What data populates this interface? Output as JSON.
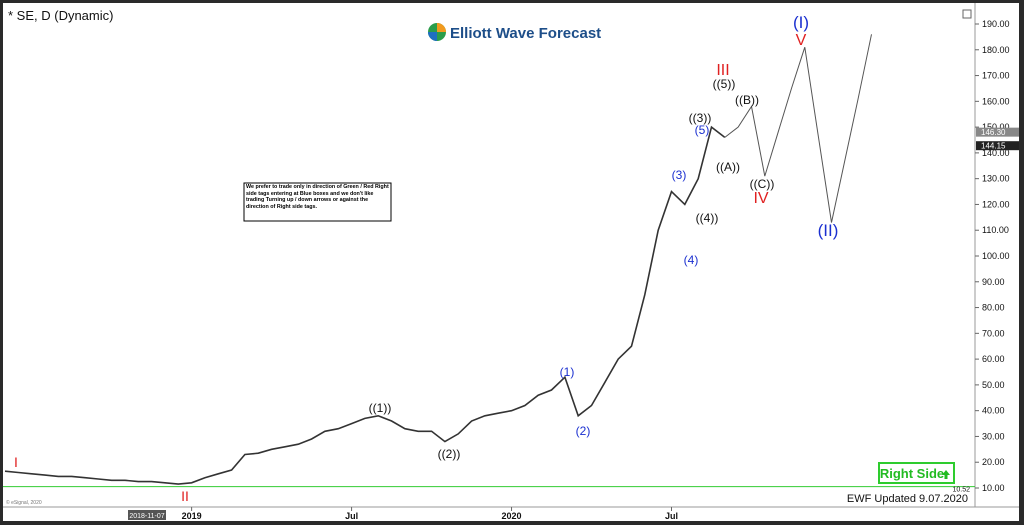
{
  "chart_data": {
    "type": "line",
    "title": "* SE, D (Dynamic)",
    "brand": "Elliott Wave Forecast",
    "note": "We prefer to trade only in direction of Green / Red Right side tags entering at Blue boxes and we don't like trading Turning up / down arrows or against the direction of Right side tags.",
    "right_side": "Right Side",
    "updated": "EWF Updated 9.07.2020",
    "copyright": "© eSignal, 2020",
    "cursor_date": "2018-11-07",
    "categories": [
      null,
      null,
      null,
      null,
      null,
      null,
      null,
      null,
      null,
      null,
      null,
      null,
      null,
      null,
      "2019",
      null,
      null,
      null,
      null,
      null,
      null,
      null,
      null,
      null,
      null,
      null,
      "Jul",
      null,
      null,
      null,
      null,
      null,
      null,
      null,
      null,
      null,
      null,
      null,
      "2020",
      null,
      null,
      null,
      null,
      null,
      null,
      null,
      null,
      null,
      null,
      null,
      "Jul",
      null,
      null,
      null,
      null,
      null,
      null,
      null,
      null,
      null,
      null,
      null,
      null,
      null,
      null,
      null
    ],
    "series": [
      {
        "color": "#333333",
        "values": [
          16.5,
          16,
          15.5,
          15,
          14.5,
          14.5,
          14,
          13.5,
          13,
          13,
          12.5,
          12.5,
          12,
          11.5,
          12,
          14,
          15.5,
          17,
          23,
          23.5,
          25,
          26,
          27,
          29,
          32,
          33,
          35,
          37,
          38,
          36,
          33,
          32,
          32,
          28,
          31,
          36,
          38,
          39,
          40,
          42,
          46,
          48,
          53,
          38,
          42,
          51,
          60,
          65,
          85,
          110,
          125,
          120,
          130,
          150,
          146,
          null,
          null,
          null,
          null,
          null,
          null,
          null,
          null,
          null,
          null,
          null
        ]
      },
      {
        "color": "#555555",
        "values": [
          null,
          null,
          null,
          null,
          null,
          null,
          null,
          null,
          null,
          null,
          null,
          null,
          null,
          null,
          null,
          null,
          null,
          null,
          null,
          null,
          null,
          null,
          null,
          null,
          null,
          null,
          null,
          null,
          null,
          null,
          null,
          null,
          null,
          null,
          null,
          null,
          null,
          null,
          null,
          null,
          null,
          null,
          null,
          null,
          null,
          null,
          null,
          null,
          null,
          null,
          null,
          null,
          null,
          null,
          146,
          150,
          158,
          131,
          148,
          165,
          181,
          147,
          113,
          137,
          161,
          186
        ]
      }
    ],
    "ylim": [
      10,
      190
    ],
    "yticks": [
      {
        "value": 10,
        "label": "10.00"
      },
      {
        "value": 20,
        "label": "20.00"
      },
      {
        "value": 30,
        "label": "30.00"
      },
      {
        "value": 40,
        "label": "40.00"
      },
      {
        "value": 50,
        "label": "50.00"
      },
      {
        "value": 60,
        "label": "60.00"
      },
      {
        "value": 70,
        "label": "70.00"
      },
      {
        "value": 80,
        "label": "80.00"
      },
      {
        "value": 90,
        "label": "90.00"
      },
      {
        "value": 100,
        "label": "100.00"
      },
      {
        "value": 110,
        "label": "110.00"
      },
      {
        "value": 120,
        "label": "120.00"
      },
      {
        "value": 130,
        "label": "130.00"
      },
      {
        "value": 140,
        "label": "140.00"
      },
      {
        "value": 150,
        "label": "150.00"
      },
      {
        "value": 160,
        "label": "160.00"
      },
      {
        "value": 170,
        "label": "170.00"
      },
      {
        "value": 180,
        "label": "180.00"
      },
      {
        "value": 190,
        "label": "190.00"
      }
    ],
    "price_markers": [
      {
        "value": 146.3,
        "label": "146.30"
      },
      {
        "value": 144.15,
        "label": "144.15"
      },
      {
        "value": 10.52,
        "label": "10.52"
      }
    ],
    "wave_labels": [
      {
        "text": "I",
        "color": "#e02020"
      },
      {
        "text": "II",
        "color": "#e02020"
      },
      {
        "text": "((1))",
        "color": "#111111"
      },
      {
        "text": "((2))",
        "color": "#111111"
      },
      {
        "text": "(1)",
        "color": "#1a2fd0"
      },
      {
        "text": "(2)",
        "color": "#1a2fd0"
      },
      {
        "text": "(3)",
        "color": "#1a2fd0"
      },
      {
        "text": "(4)",
        "color": "#1a2fd0"
      },
      {
        "text": "(5)",
        "color": "#1a2fd0"
      },
      {
        "text": "((3))",
        "color": "#111111"
      },
      {
        "text": "((4))",
        "color": "#111111"
      },
      {
        "text": "((5))",
        "color": "#111111"
      },
      {
        "text": "III",
        "color": "#e02020"
      },
      {
        "text": "((A))",
        "color": "#111111"
      },
      {
        "text": "((B))",
        "color": "#111111"
      },
      {
        "text": "((C))",
        "color": "#111111"
      },
      {
        "text": "IV",
        "color": "#e02020"
      },
      {
        "text": "(I)",
        "color": "#1a2fd0"
      },
      {
        "text": "V",
        "color": "#e02020"
      },
      {
        "text": "(II)",
        "color": "#1a2fd0"
      }
    ]
  }
}
